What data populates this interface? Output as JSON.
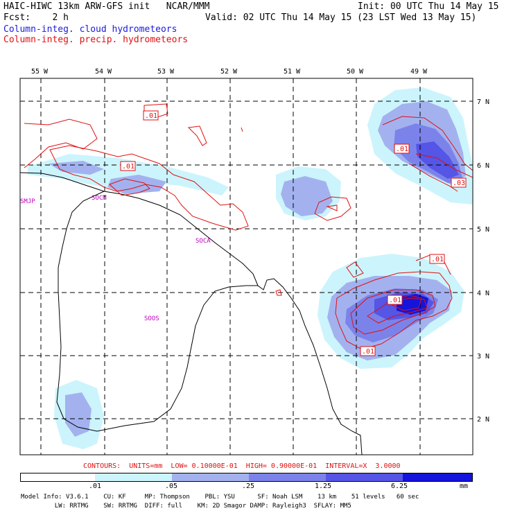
{
  "header": {
    "line1_left": "HAIC-HIWC 13km ARW-GFS init   NCAR/MMM",
    "line1_right": "Init: 00 UTC Thu 14 May 15",
    "line2_left": "Fcst:    2 h",
    "line2_right": "Valid: 02 UTC Thu 14 May 15 (23 LST Wed 13 May 15)",
    "legend_cloud": "Column-integ. cloud hydrometeors",
    "legend_precip": "Column-integ. precip. hydrometeors"
  },
  "map": {
    "lon_labels": [
      "55 W",
      "54 W",
      "53 W",
      "52 W",
      "51 W",
      "50 W",
      "49 W"
    ],
    "lat_labels": [
      "7 N",
      "6 N",
      "5 N",
      "4 N",
      "3 N",
      "2 N"
    ],
    "stations": [
      "SMJP",
      "SOCM",
      "SOCA",
      "SOOS"
    ],
    "contour_labels": [
      ".01",
      ".01",
      ".01",
      ".03",
      ".01",
      ".01",
      ".01"
    ],
    "colors": {
      "cloud_level1": "#ccf4fc",
      "cloud_level2": "#a3b2ef",
      "cloud_level3": "#7b83ea",
      "cloud_level4": "#5555e6",
      "cloud_level5": "#1414dc",
      "precip_contour": "#e01010",
      "station_label": "#c000c0",
      "coastline": "#000000"
    }
  },
  "contours_info": "CONTOURS:  UNITS=mm  LOW= 0.10000E-01  HIGH= 0.90000E-01  INTERVAL=X  3.0000",
  "colorbar": {
    "tick_labels": [
      ".01",
      ".05",
      ".25",
      "1.25",
      "6.25"
    ],
    "unit": "mm",
    "colors": [
      "#ffffff",
      "#ccf4fc",
      "#a3b2ef",
      "#7b83ea",
      "#5555e6",
      "#1414dc"
    ]
  },
  "model_info": {
    "line1": "Model Info: V3.6.1    CU: KF     MP: Thompson    PBL: YSU      SF: Noah LSM    13 km    51 levels   60 sec",
    "line2": "         LW: RRTMG    SW: RRTMG  DIFF: full    KM: 2D Smagor DAMP: Rayleigh3  SFLAY: MM5"
  }
}
